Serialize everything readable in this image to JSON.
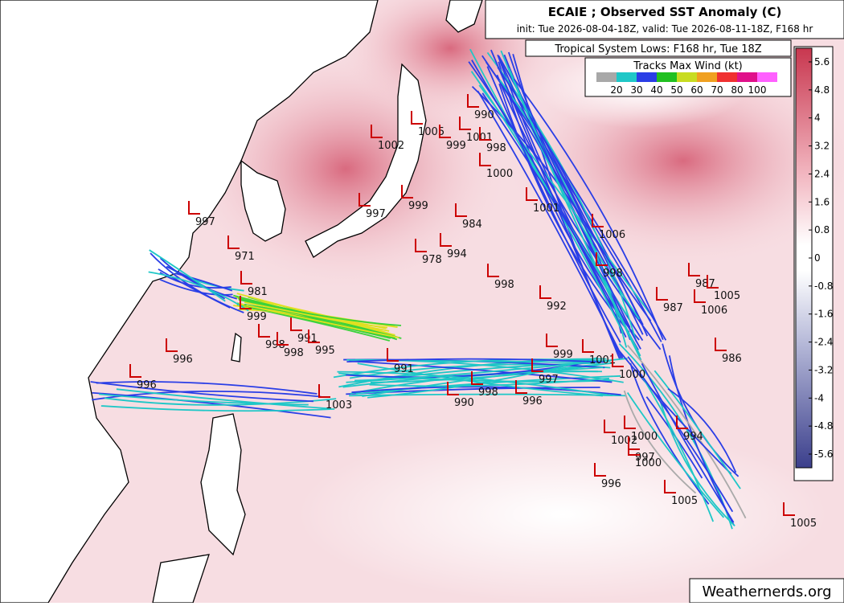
{
  "header": {
    "title": "ECAIE ; Observed SST Anomaly (C)",
    "subtitle": "init: Tue 2026-08-04-18Z, valid: Tue 2026-08-11-18Z, F168 hr",
    "lows_title": "Tropical System Lows: F168 hr, Tue 18Z"
  },
  "legend": {
    "title": "Tracks Max Wind (kt)",
    "labels": [
      20,
      30,
      40,
      50,
      60,
      70,
      80,
      100
    ]
  },
  "colorbar": {
    "ticks": [
      5.6,
      4.8,
      4,
      3.2,
      2.4,
      1.6,
      0.8,
      0,
      -0.8,
      -1.6,
      -2.4,
      -3.2,
      -4,
      -4.8,
      -5.6
    ]
  },
  "lows": [
    990,
    1001,
    998,
    1000,
    1002,
    1005,
    999,
    997,
    999,
    1001,
    1006,
    984,
    978,
    994,
    998,
    998,
    987,
    1005,
    1006,
    987,
    992,
    997,
    971,
    981,
    999,
    991,
    998,
    998,
    995,
    996,
    996,
    991,
    1001,
    999,
    986,
    1000,
    1003,
    990,
    998,
    996,
    997,
    1000,
    994,
    1002,
    997,
    1000,
    996,
    1005,
    1005
  ],
  "credit": "Weathernerds.org"
}
